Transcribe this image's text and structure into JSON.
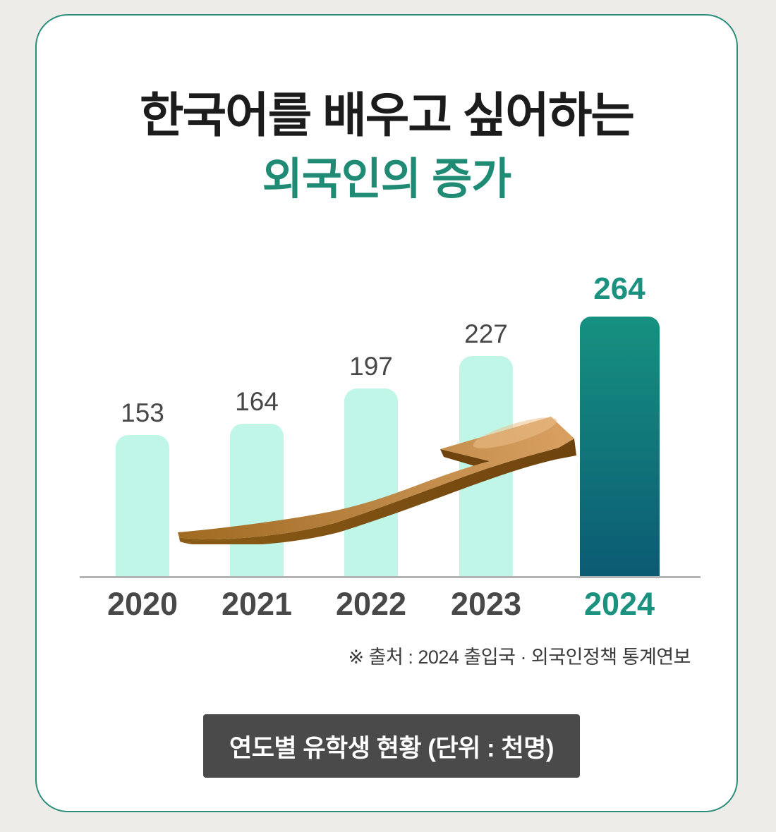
{
  "page": {
    "background_color": "#edece9"
  },
  "card": {
    "background_color": "#ffffff",
    "border_color": "#2a8d7a"
  },
  "title": {
    "line1": "한국어를 배우고 싶어하는",
    "line2": "외국인의 증가",
    "line1_color": "#1c1c1c",
    "line2_color": "#208b74"
  },
  "chart_data": {
    "type": "bar",
    "title": "연도별 유학생 현황 (단위 : 천명)",
    "categories": [
      "2020",
      "2021",
      "2022",
      "2023",
      "2024"
    ],
    "values": [
      153,
      164,
      197,
      227,
      264
    ],
    "unit": "천명",
    "highlight_index": 4,
    "bar_color": "#c0f6e8",
    "highlight_gradient_top": "#169180",
    "highlight_gradient_bottom": "#0b5b73",
    "value_label_color": "#474747",
    "highlight_value_label_color": "#1b9180",
    "category_label_color": "#484848",
    "highlight_category_label_color": "#1b9180",
    "axis_line_color": "#b3b3b3",
    "grid": false,
    "legend": "none"
  },
  "growth_arrow": {
    "meaning": "upward-growth-trend",
    "top_color_start": "#a06a22",
    "top_color_mid": "#b98441",
    "top_color_end": "#d9a062",
    "side_color": "#8a5c16",
    "side_color_dark": "#6f430e",
    "highlight_color": "#ecc18c"
  },
  "source_note": {
    "text": "※ 출처 : 2024 출입국 · 외국인정책 통계연보",
    "color": "#3c3c3c"
  },
  "footer": {
    "label": "연도별 유학생 현황 (단위 : 천명)",
    "background_color": "#4a4a4a",
    "text_color": "#ffffff"
  }
}
